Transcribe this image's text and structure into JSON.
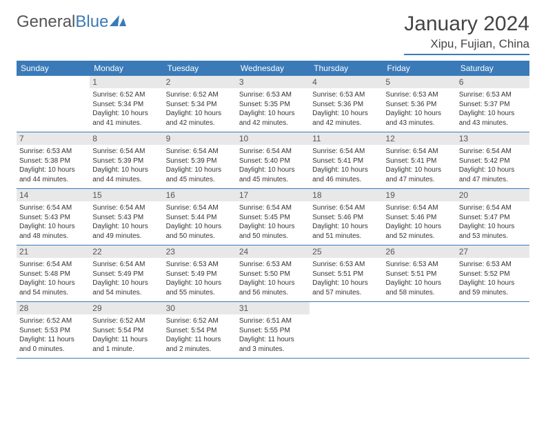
{
  "logo": {
    "word1": "General",
    "word2": "Blue"
  },
  "title": "January 2024",
  "location": "Xipu, Fujian, China",
  "colors": {
    "accent": "#3a7ab8",
    "day_header_bg": "#3a7ab8",
    "day_header_text": "#ffffff",
    "daynum_bg": "#e8e8e8",
    "border": "#3a7ab8",
    "text": "#333333",
    "background": "#ffffff"
  },
  "day_names": [
    "Sunday",
    "Monday",
    "Tuesday",
    "Wednesday",
    "Thursday",
    "Friday",
    "Saturday"
  ],
  "weeks": [
    [
      null,
      {
        "n": "1",
        "sr": "Sunrise: 6:52 AM",
        "ss": "Sunset: 5:34 PM",
        "d1": "Daylight: 10 hours",
        "d2": "and 41 minutes."
      },
      {
        "n": "2",
        "sr": "Sunrise: 6:52 AM",
        "ss": "Sunset: 5:34 PM",
        "d1": "Daylight: 10 hours",
        "d2": "and 42 minutes."
      },
      {
        "n": "3",
        "sr": "Sunrise: 6:53 AM",
        "ss": "Sunset: 5:35 PM",
        "d1": "Daylight: 10 hours",
        "d2": "and 42 minutes."
      },
      {
        "n": "4",
        "sr": "Sunrise: 6:53 AM",
        "ss": "Sunset: 5:36 PM",
        "d1": "Daylight: 10 hours",
        "d2": "and 42 minutes."
      },
      {
        "n": "5",
        "sr": "Sunrise: 6:53 AM",
        "ss": "Sunset: 5:36 PM",
        "d1": "Daylight: 10 hours",
        "d2": "and 43 minutes."
      },
      {
        "n": "6",
        "sr": "Sunrise: 6:53 AM",
        "ss": "Sunset: 5:37 PM",
        "d1": "Daylight: 10 hours",
        "d2": "and 43 minutes."
      }
    ],
    [
      {
        "n": "7",
        "sr": "Sunrise: 6:53 AM",
        "ss": "Sunset: 5:38 PM",
        "d1": "Daylight: 10 hours",
        "d2": "and 44 minutes."
      },
      {
        "n": "8",
        "sr": "Sunrise: 6:54 AM",
        "ss": "Sunset: 5:39 PM",
        "d1": "Daylight: 10 hours",
        "d2": "and 44 minutes."
      },
      {
        "n": "9",
        "sr": "Sunrise: 6:54 AM",
        "ss": "Sunset: 5:39 PM",
        "d1": "Daylight: 10 hours",
        "d2": "and 45 minutes."
      },
      {
        "n": "10",
        "sr": "Sunrise: 6:54 AM",
        "ss": "Sunset: 5:40 PM",
        "d1": "Daylight: 10 hours",
        "d2": "and 45 minutes."
      },
      {
        "n": "11",
        "sr": "Sunrise: 6:54 AM",
        "ss": "Sunset: 5:41 PM",
        "d1": "Daylight: 10 hours",
        "d2": "and 46 minutes."
      },
      {
        "n": "12",
        "sr": "Sunrise: 6:54 AM",
        "ss": "Sunset: 5:41 PM",
        "d1": "Daylight: 10 hours",
        "d2": "and 47 minutes."
      },
      {
        "n": "13",
        "sr": "Sunrise: 6:54 AM",
        "ss": "Sunset: 5:42 PM",
        "d1": "Daylight: 10 hours",
        "d2": "and 47 minutes."
      }
    ],
    [
      {
        "n": "14",
        "sr": "Sunrise: 6:54 AM",
        "ss": "Sunset: 5:43 PM",
        "d1": "Daylight: 10 hours",
        "d2": "and 48 minutes."
      },
      {
        "n": "15",
        "sr": "Sunrise: 6:54 AM",
        "ss": "Sunset: 5:43 PM",
        "d1": "Daylight: 10 hours",
        "d2": "and 49 minutes."
      },
      {
        "n": "16",
        "sr": "Sunrise: 6:54 AM",
        "ss": "Sunset: 5:44 PM",
        "d1": "Daylight: 10 hours",
        "d2": "and 50 minutes."
      },
      {
        "n": "17",
        "sr": "Sunrise: 6:54 AM",
        "ss": "Sunset: 5:45 PM",
        "d1": "Daylight: 10 hours",
        "d2": "and 50 minutes."
      },
      {
        "n": "18",
        "sr": "Sunrise: 6:54 AM",
        "ss": "Sunset: 5:46 PM",
        "d1": "Daylight: 10 hours",
        "d2": "and 51 minutes."
      },
      {
        "n": "19",
        "sr": "Sunrise: 6:54 AM",
        "ss": "Sunset: 5:46 PM",
        "d1": "Daylight: 10 hours",
        "d2": "and 52 minutes."
      },
      {
        "n": "20",
        "sr": "Sunrise: 6:54 AM",
        "ss": "Sunset: 5:47 PM",
        "d1": "Daylight: 10 hours",
        "d2": "and 53 minutes."
      }
    ],
    [
      {
        "n": "21",
        "sr": "Sunrise: 6:54 AM",
        "ss": "Sunset: 5:48 PM",
        "d1": "Daylight: 10 hours",
        "d2": "and 54 minutes."
      },
      {
        "n": "22",
        "sr": "Sunrise: 6:54 AM",
        "ss": "Sunset: 5:49 PM",
        "d1": "Daylight: 10 hours",
        "d2": "and 54 minutes."
      },
      {
        "n": "23",
        "sr": "Sunrise: 6:53 AM",
        "ss": "Sunset: 5:49 PM",
        "d1": "Daylight: 10 hours",
        "d2": "and 55 minutes."
      },
      {
        "n": "24",
        "sr": "Sunrise: 6:53 AM",
        "ss": "Sunset: 5:50 PM",
        "d1": "Daylight: 10 hours",
        "d2": "and 56 minutes."
      },
      {
        "n": "25",
        "sr": "Sunrise: 6:53 AM",
        "ss": "Sunset: 5:51 PM",
        "d1": "Daylight: 10 hours",
        "d2": "and 57 minutes."
      },
      {
        "n": "26",
        "sr": "Sunrise: 6:53 AM",
        "ss": "Sunset: 5:51 PM",
        "d1": "Daylight: 10 hours",
        "d2": "and 58 minutes."
      },
      {
        "n": "27",
        "sr": "Sunrise: 6:53 AM",
        "ss": "Sunset: 5:52 PM",
        "d1": "Daylight: 10 hours",
        "d2": "and 59 minutes."
      }
    ],
    [
      {
        "n": "28",
        "sr": "Sunrise: 6:52 AM",
        "ss": "Sunset: 5:53 PM",
        "d1": "Daylight: 11 hours",
        "d2": "and 0 minutes."
      },
      {
        "n": "29",
        "sr": "Sunrise: 6:52 AM",
        "ss": "Sunset: 5:54 PM",
        "d1": "Daylight: 11 hours",
        "d2": "and 1 minute."
      },
      {
        "n": "30",
        "sr": "Sunrise: 6:52 AM",
        "ss": "Sunset: 5:54 PM",
        "d1": "Daylight: 11 hours",
        "d2": "and 2 minutes."
      },
      {
        "n": "31",
        "sr": "Sunrise: 6:51 AM",
        "ss": "Sunset: 5:55 PM",
        "d1": "Daylight: 11 hours",
        "d2": "and 3 minutes."
      },
      null,
      null,
      null
    ]
  ]
}
